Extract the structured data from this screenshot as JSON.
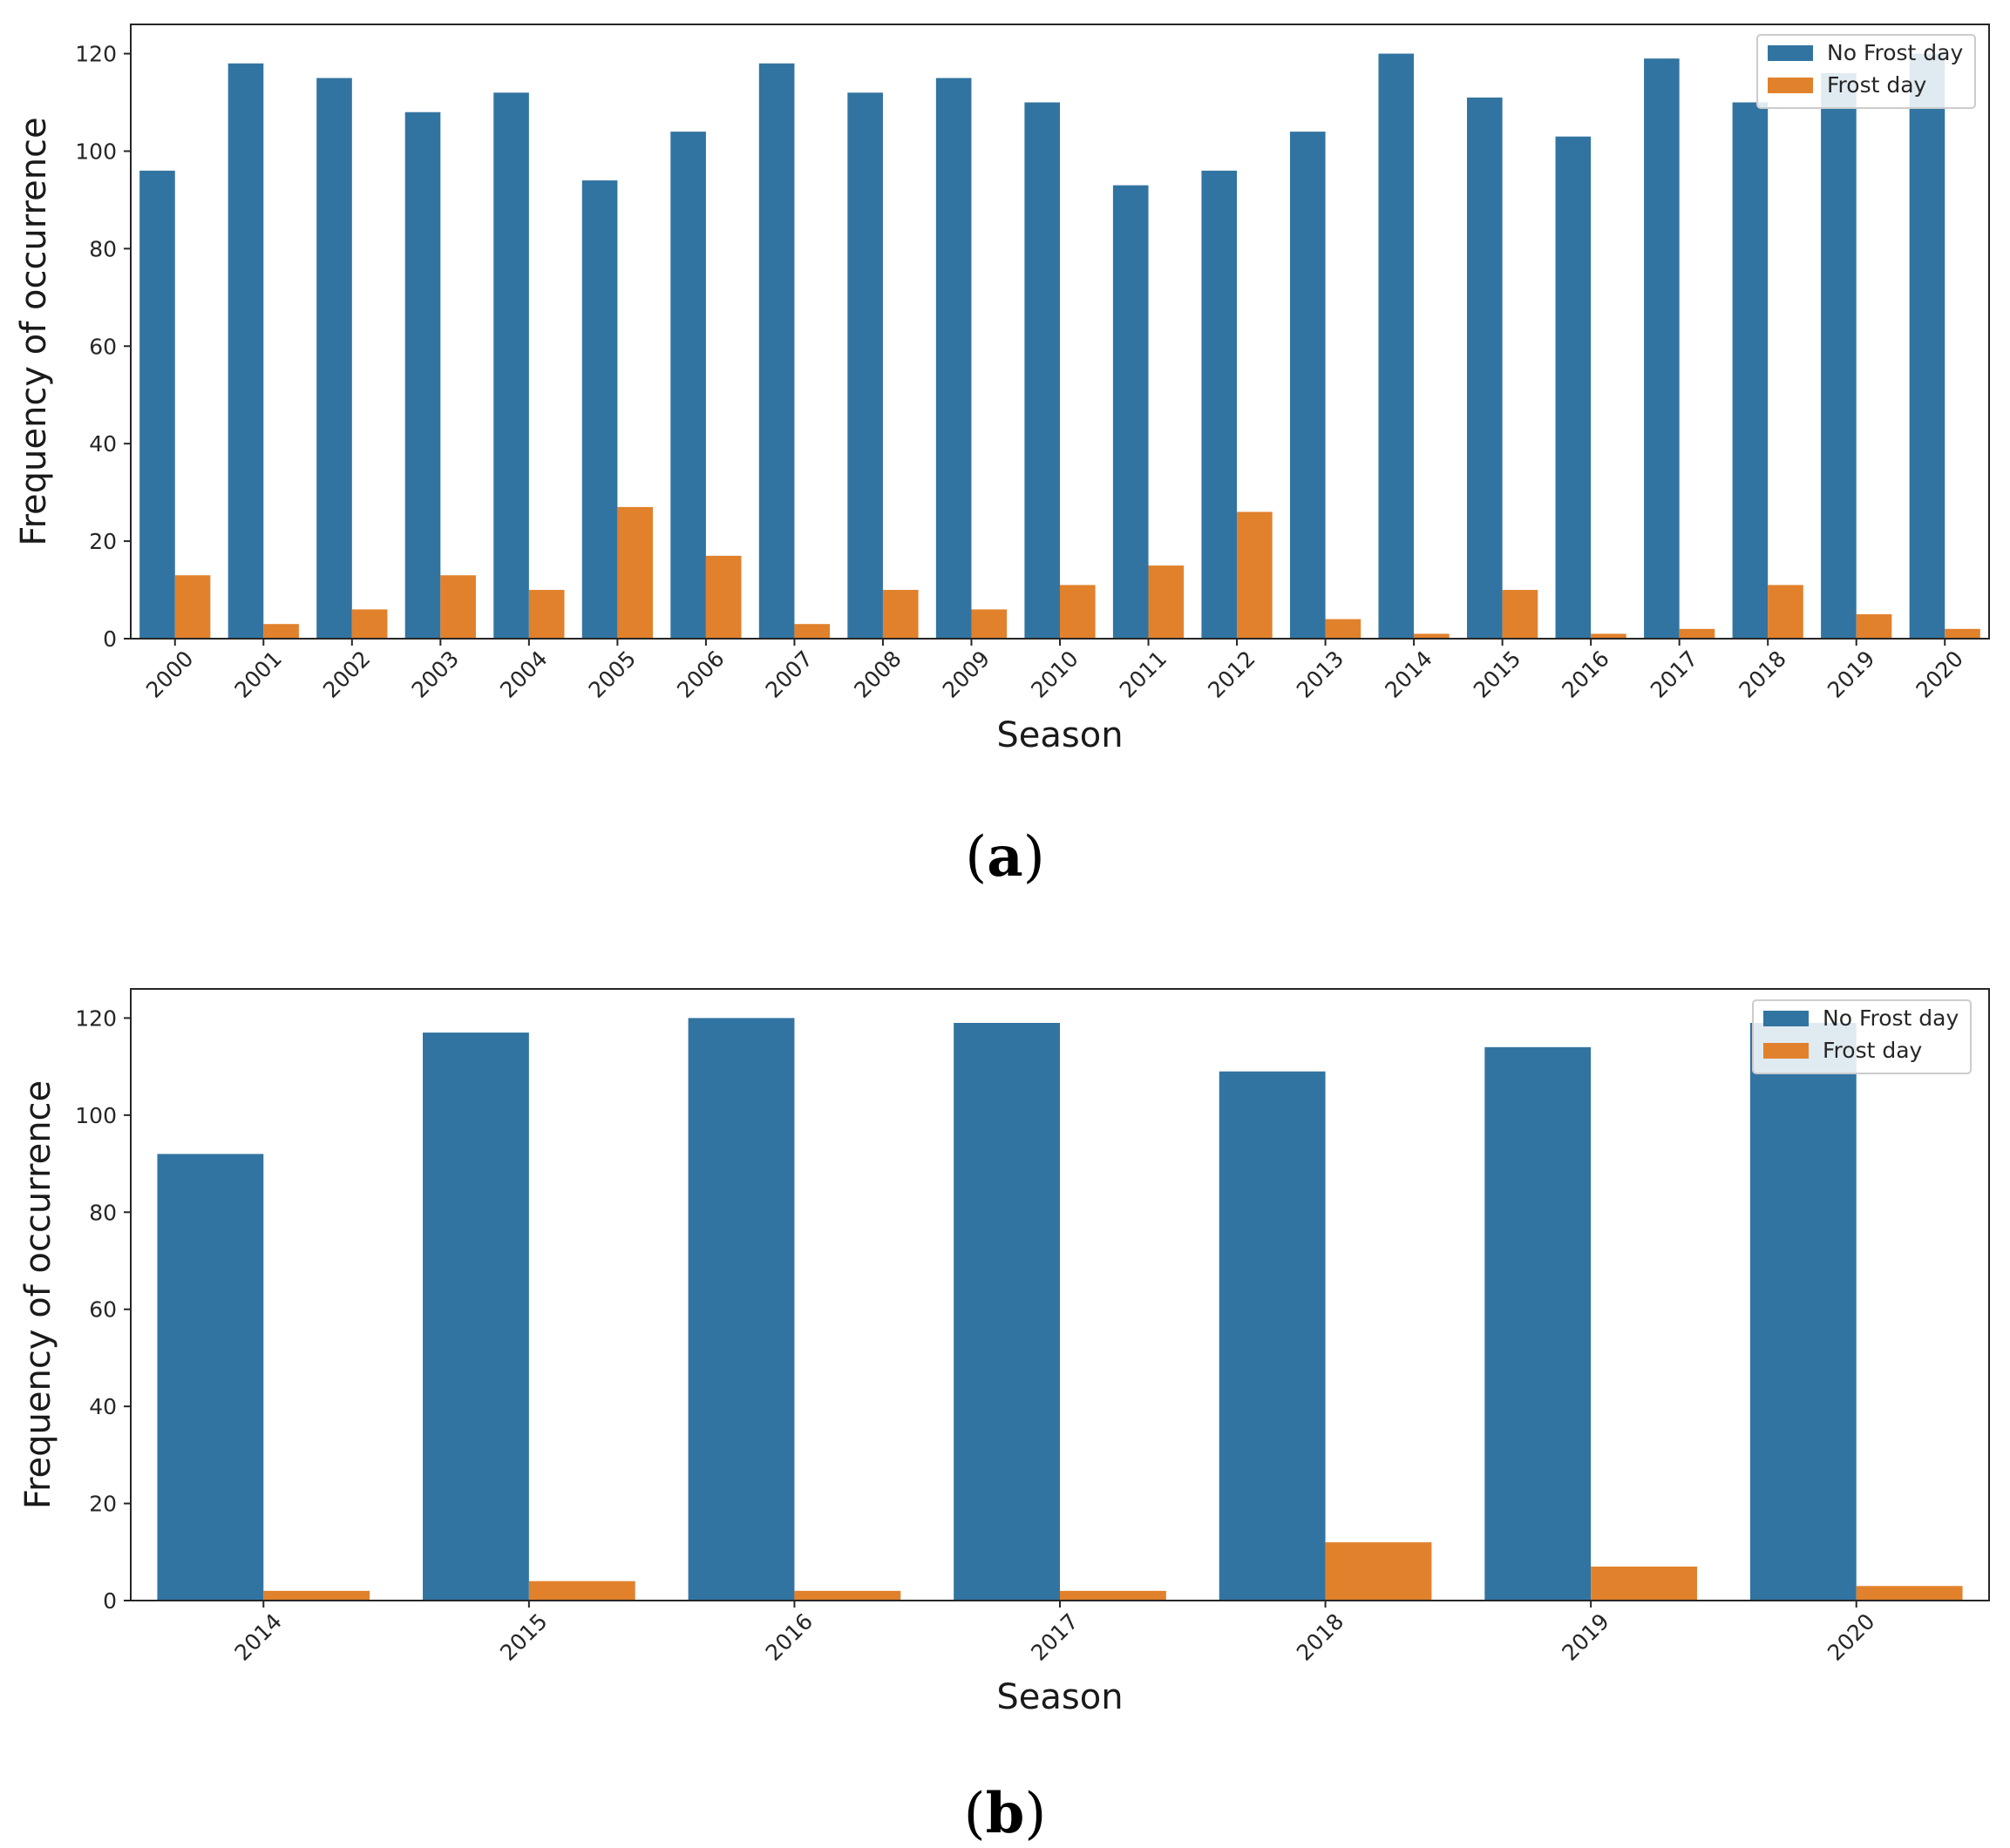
{
  "colors": {
    "no_frost": "#3274a1",
    "frost": "#e1812c"
  },
  "chart_data": [
    {
      "type": "bar",
      "panel": "a",
      "categories": [
        "2000",
        "2001",
        "2002",
        "2003",
        "2004",
        "2005",
        "2006",
        "2007",
        "2008",
        "2009",
        "2010",
        "2011",
        "2012",
        "2013",
        "2014",
        "2015",
        "2016",
        "2017",
        "2018",
        "2019",
        "2020"
      ],
      "series": [
        {
          "name": "No Frost day",
          "values": [
            96,
            118,
            115,
            108,
            112,
            94,
            104,
            118,
            112,
            115,
            110,
            93,
            96,
            104,
            120,
            111,
            103,
            119,
            110,
            116,
            120
          ]
        },
        {
          "name": "Frost day",
          "values": [
            13,
            3,
            6,
            13,
            10,
            27,
            17,
            3,
            10,
            6,
            11,
            15,
            26,
            4,
            1,
            10,
            1,
            2,
            11,
            5,
            2
          ]
        }
      ],
      "xlabel": "Season",
      "ylabel": "Frequency of occurrence",
      "ylim": [
        0,
        126
      ],
      "yticks": [
        "0",
        "20",
        "40",
        "60",
        "80",
        "100",
        "120"
      ],
      "legend": "top-right",
      "caption": "(a)"
    },
    {
      "type": "bar",
      "panel": "b",
      "categories": [
        "2014",
        "2015",
        "2016",
        "2017",
        "2018",
        "2019",
        "2020"
      ],
      "series": [
        {
          "name": "No Frost day",
          "values": [
            92,
            117,
            120,
            119,
            109,
            114,
            119
          ]
        },
        {
          "name": "Frost day",
          "values": [
            2,
            4,
            2,
            2,
            12,
            7,
            3
          ]
        }
      ],
      "xlabel": "Season",
      "ylabel": "Frequency of occurrence",
      "ylim": [
        0,
        126
      ],
      "yticks": [
        "0",
        "20",
        "40",
        "60",
        "80",
        "100",
        "120"
      ],
      "legend": "top-right",
      "caption": "(b)"
    }
  ]
}
